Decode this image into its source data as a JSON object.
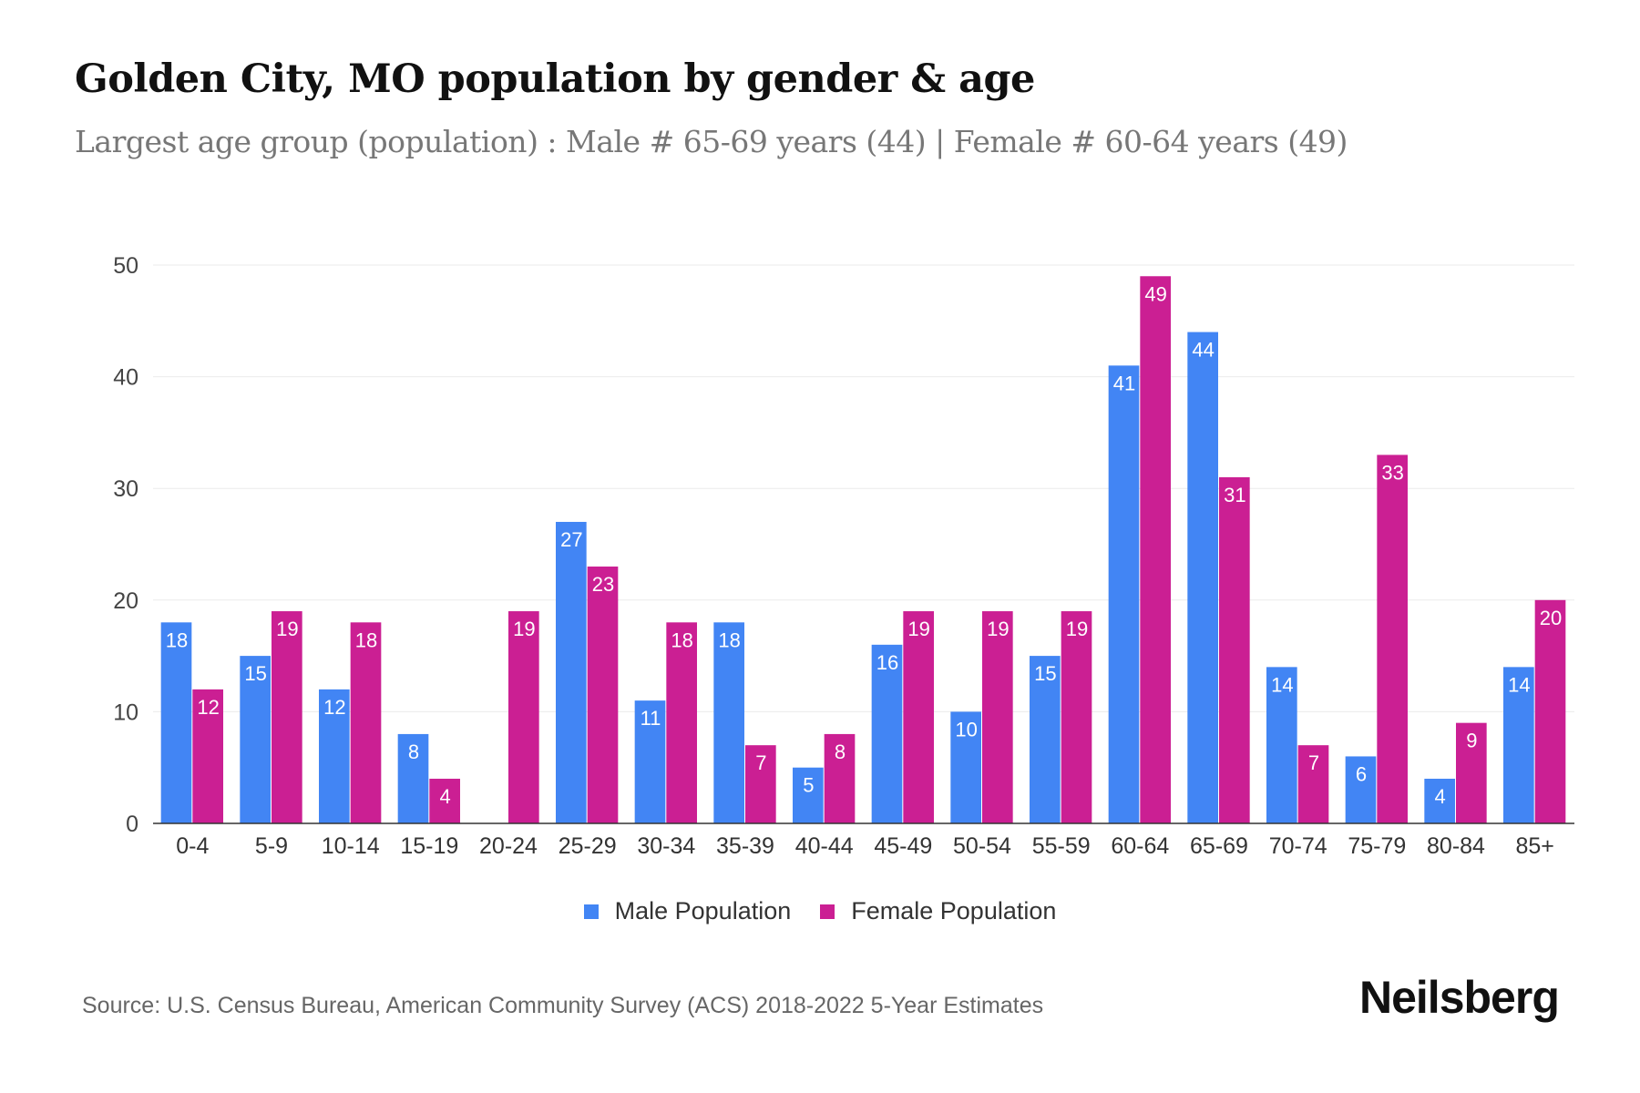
{
  "title": "Golden City, MO population by gender & age",
  "subtitle": "Largest age group (population) : Male # 65-69 years (44) | Female # 60-64 years (49)",
  "source": "Source: U.S. Census Bureau, American Community Survey (ACS) 2018-2022 5-Year Estimates",
  "logo": "Neilsberg",
  "chart_data": {
    "type": "bar",
    "title": "Golden City, MO population by gender & age",
    "xlabel": "",
    "ylabel": "",
    "ylim": [
      0,
      50
    ],
    "yticks": [
      0,
      10,
      20,
      30,
      40,
      50
    ],
    "grid": true,
    "legend_position": "bottom-center",
    "categories": [
      "0-4",
      "5-9",
      "10-14",
      "15-19",
      "20-24",
      "25-29",
      "30-34",
      "35-39",
      "40-44",
      "45-49",
      "50-54",
      "55-59",
      "60-64",
      "65-69",
      "70-74",
      "75-79",
      "80-84",
      "85+"
    ],
    "series": [
      {
        "name": "Male Population",
        "color": "#4285f4",
        "values": [
          18,
          15,
          12,
          8,
          0,
          27,
          11,
          18,
          5,
          16,
          10,
          15,
          41,
          44,
          14,
          6,
          4,
          14
        ]
      },
      {
        "name": "Female Population",
        "color": "#cb1f93",
        "values": [
          12,
          19,
          18,
          4,
          19,
          23,
          18,
          7,
          8,
          19,
          19,
          19,
          49,
          31,
          7,
          33,
          9,
          20
        ]
      }
    ]
  }
}
